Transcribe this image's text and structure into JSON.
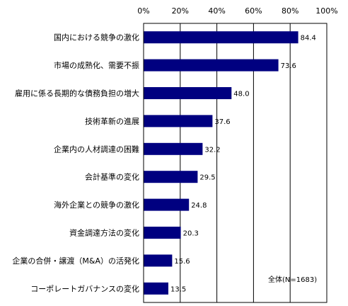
{
  "chart_data": {
    "type": "bar",
    "orientation": "horizontal",
    "categories": [
      "国内における競争の激化",
      "市場の成熟化、需要不振",
      "雇用に係る長期的な債務負担の増大",
      "技術革新の進展",
      "企業内の人材調達の困難",
      "会計基準の変化",
      "海外企業との競争の激化",
      "資金調達方法の変化",
      "企業の合併・譲渡（M&A）の活発化",
      "コーポレートガバナンスの変化"
    ],
    "values": [
      84.4,
      73.6,
      48.0,
      37.6,
      32.2,
      29.5,
      24.8,
      20.3,
      15.6,
      13.5
    ],
    "value_labels": [
      "84.4",
      "73.6",
      "48.0",
      "37.6",
      "32.2",
      "29.5",
      "24.8",
      "20.3",
      "15.6",
      "13.5"
    ],
    "x_ticks": [
      "0%",
      "20%",
      "40%",
      "60%",
      "80%",
      "100%"
    ],
    "xlim": [
      0,
      100
    ],
    "grid": true,
    "bar_color": "#000080",
    "note": "全体(N=1683)",
    "title": "",
    "xlabel": "",
    "ylabel": ""
  }
}
